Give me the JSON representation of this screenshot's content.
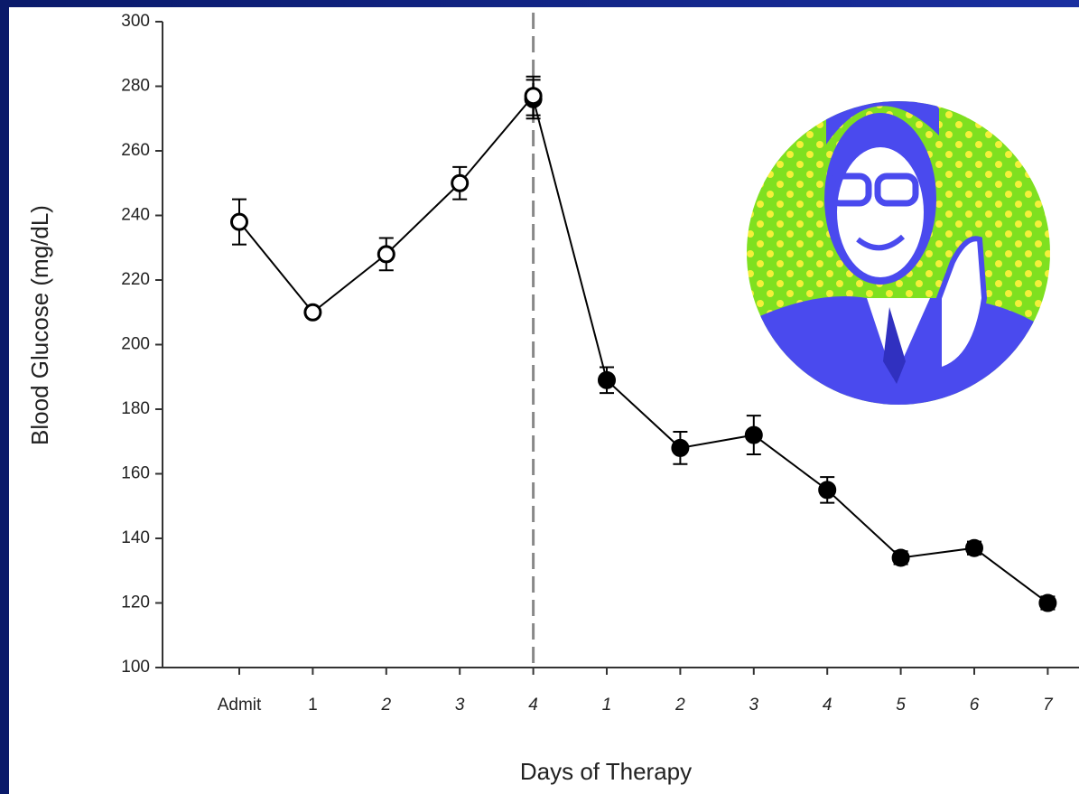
{
  "chart_data": {
    "type": "line",
    "y_label": "Blood Glucose (mg/dL)",
    "x_label": "Days of Therapy",
    "categories": [
      "Admit",
      "1",
      "2",
      "3",
      "4",
      "1",
      "2",
      "3",
      "4",
      "5",
      "6",
      "7"
    ],
    "series": [
      {
        "color": "#000000",
        "fill": "#ffffff",
        "values": [
          238,
          210,
          228,
          250,
          277,
          null,
          null,
          null,
          null,
          null,
          null,
          null
        ],
        "errors": [
          7,
          1,
          5,
          5,
          6,
          null,
          null,
          null,
          null,
          null,
          null,
          null
        ]
      },
      {
        "color": "#000000",
        "fill": "#000000",
        "values": [
          null,
          null,
          null,
          null,
          276,
          189,
          168,
          172,
          155,
          134,
          137,
          120
        ],
        "errors": [
          null,
          null,
          null,
          null,
          6,
          4,
          5,
          6,
          4,
          2,
          2,
          2
        ]
      }
    ],
    "ylim": [
      100,
      300
    ],
    "yticks": [
      100,
      120,
      140,
      160,
      180,
      200,
      220,
      240,
      260,
      280,
      300
    ]
  }
}
